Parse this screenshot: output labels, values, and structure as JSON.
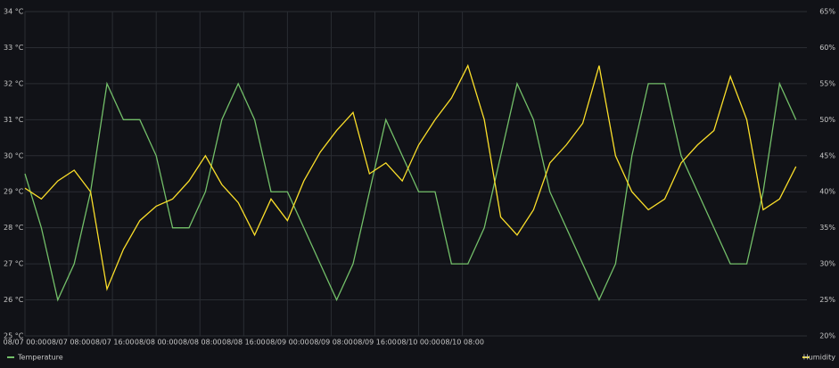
{
  "chart_data": {
    "type": "line",
    "x": [
      0,
      3,
      6,
      9,
      12,
      15,
      18,
      21,
      24,
      27,
      30,
      33,
      36,
      39,
      42,
      45,
      48,
      51,
      54,
      57,
      60,
      63,
      66,
      69,
      72,
      75,
      78,
      81,
      84,
      87,
      90,
      93,
      96,
      99,
      102,
      105,
      108,
      111,
      114,
      117,
      120,
      123,
      126,
      129,
      132,
      135,
      138,
      141
    ],
    "xlim": [
      0,
      143
    ],
    "xticks": [
      {
        "value": 0,
        "label": "08/07 00:00"
      },
      {
        "value": 8,
        "label": "08/07 08:00"
      },
      {
        "value": 16,
        "label": "08/07 16:00"
      },
      {
        "value": 24,
        "label": "08/08 00:00"
      },
      {
        "value": 32,
        "label": "08/08 08:00"
      },
      {
        "value": 40,
        "label": "08/08 16:00"
      },
      {
        "value": 48,
        "label": "08/09 00:00"
      },
      {
        "value": 56,
        "label": "08/09 08:00"
      },
      {
        "value": 64,
        "label": "08/09 16:00"
      },
      {
        "value": 72,
        "label": "08/10 00:00"
      },
      {
        "value": 80,
        "label": "08/10 08:00"
      }
    ],
    "ylim": [
      25,
      34
    ],
    "yticks": [
      {
        "value": 25,
        "label": "25 °C"
      },
      {
        "value": 26,
        "label": "26 °C"
      },
      {
        "value": 27,
        "label": "27 °C"
      },
      {
        "value": 28,
        "label": "28 °C"
      },
      {
        "value": 29,
        "label": "29 °C"
      },
      {
        "value": 30,
        "label": "30 °C"
      },
      {
        "value": 31,
        "label": "31 °C"
      },
      {
        "value": 32,
        "label": "32 °C"
      },
      {
        "value": 33,
        "label": "33 °C"
      },
      {
        "value": 34,
        "label": "34 °C"
      }
    ],
    "y2lim": [
      20,
      65
    ],
    "y2ticks": [
      {
        "value": 20,
        "label": "20%"
      },
      {
        "value": 25,
        "label": "25%"
      },
      {
        "value": 30,
        "label": "30%"
      },
      {
        "value": 35,
        "label": "35%"
      },
      {
        "value": 40,
        "label": "40%"
      },
      {
        "value": 45,
        "label": "45%"
      },
      {
        "value": 50,
        "label": "50%"
      },
      {
        "value": 55,
        "label": "55%"
      },
      {
        "value": 60,
        "label": "60%"
      },
      {
        "value": 65,
        "label": "65%"
      }
    ],
    "grid": true,
    "series": [
      {
        "name": "Temperature",
        "color": "#73bf69",
        "values": [
          29.5,
          28,
          26,
          27,
          29,
          32,
          31,
          31,
          30,
          28,
          28,
          29,
          31,
          32,
          31,
          29,
          29,
          28,
          27,
          26,
          27,
          29,
          31,
          30,
          29,
          29,
          27,
          27,
          28,
          30,
          32,
          31,
          29,
          28,
          27,
          26,
          27,
          30,
          32,
          32,
          30,
          29,
          28,
          27,
          27,
          29,
          32,
          31
        ]
      },
      {
        "name": "Humidity",
        "color": "#fade2a",
        "axis": "y2",
        "values": [
          40.5,
          39,
          41.5,
          43,
          40,
          26.5,
          32,
          36,
          38,
          39,
          41.5,
          45,
          41,
          38.5,
          34,
          39,
          36,
          41.5,
          45.5,
          48.5,
          51,
          42.5,
          44,
          41.5,
          46.5,
          50,
          53,
          57.5,
          50,
          36.5,
          34,
          37.5,
          44,
          46.5,
          49.5,
          57.5,
          45,
          40,
          37.5,
          39,
          44,
          46.5,
          48.5,
          56,
          50,
          37.5,
          39,
          43.5
        ]
      }
    ]
  }
}
